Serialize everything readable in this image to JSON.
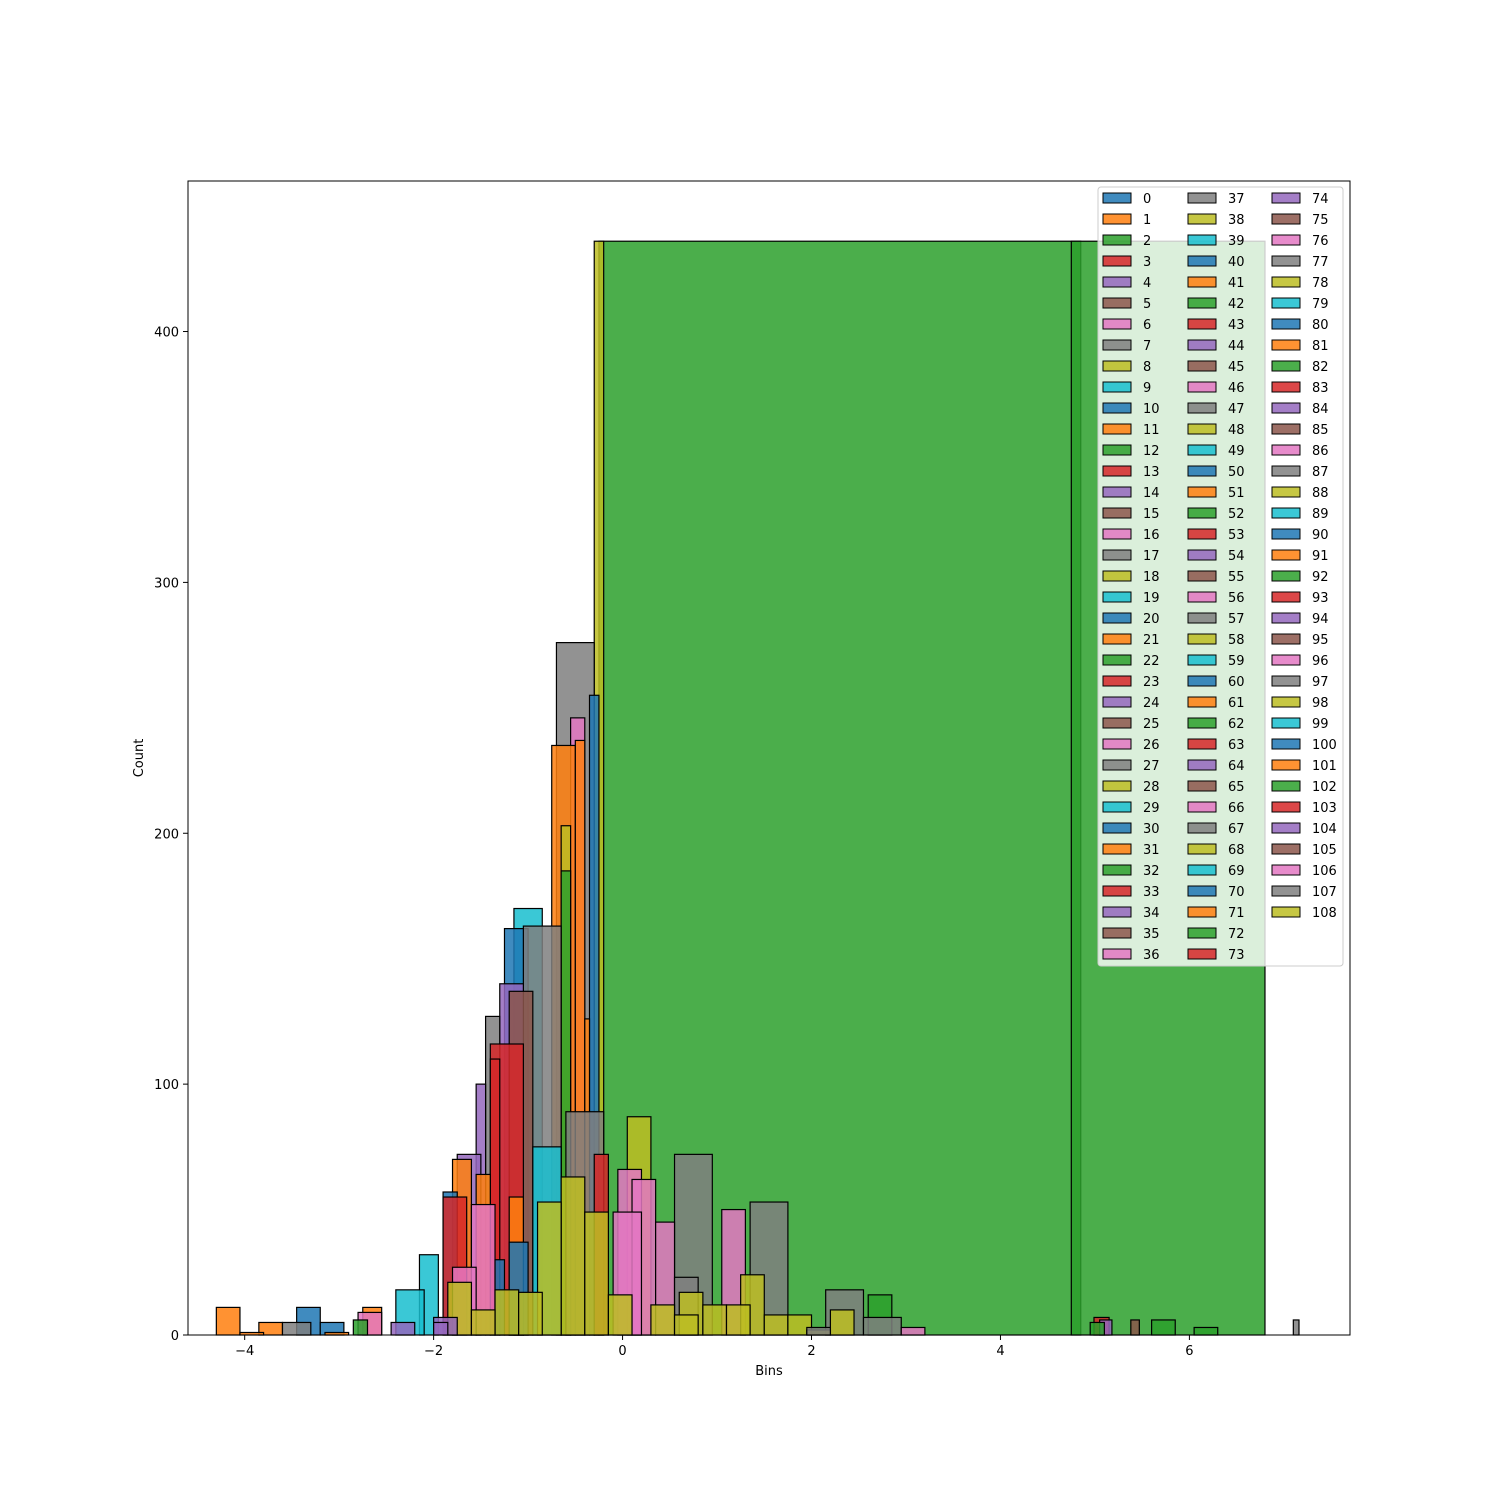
{
  "chart_data": {
    "type": "bar",
    "title": "",
    "xlabel": "Bins",
    "ylabel": "Count",
    "xlim": [
      -4.6,
      7.7
    ],
    "ylim": [
      0,
      460
    ],
    "x_ticks": [
      -4,
      -2,
      0,
      2,
      4,
      6
    ],
    "x_tick_labels": [
      "−4",
      "−2",
      "0",
      "2",
      "4",
      "6"
    ],
    "y_ticks": [
      0,
      100,
      200,
      300,
      400
    ],
    "y_tick_labels": [
      "0",
      "100",
      "200",
      "300",
      "400"
    ],
    "legend_location": "upper right",
    "legend_columns": 3,
    "legend_labels": [
      "0",
      "1",
      "2",
      "3",
      "4",
      "5",
      "6",
      "7",
      "8",
      "9",
      "10",
      "11",
      "12",
      "13",
      "14",
      "15",
      "16",
      "17",
      "18",
      "19",
      "20",
      "21",
      "22",
      "23",
      "24",
      "25",
      "26",
      "27",
      "28",
      "29",
      "30",
      "31",
      "32",
      "33",
      "34",
      "35",
      "36",
      "37",
      "38",
      "39",
      "40",
      "41",
      "42",
      "43",
      "44",
      "45",
      "46",
      "47",
      "48",
      "49",
      "50",
      "51",
      "52",
      "53",
      "54",
      "55",
      "56",
      "57",
      "58",
      "59",
      "60",
      "61",
      "62",
      "63",
      "64",
      "65",
      "66",
      "67",
      "68",
      "69",
      "70",
      "71",
      "72",
      "73",
      "74",
      "75",
      "76",
      "77",
      "78",
      "79",
      "80",
      "81",
      "82",
      "83",
      "84",
      "85",
      "86",
      "87",
      "88",
      "89",
      "90",
      "91",
      "92",
      "93",
      "94",
      "95",
      "96",
      "97",
      "98",
      "99",
      "100",
      "101",
      "102",
      "103",
      "104",
      "105",
      "106",
      "107",
      "108"
    ],
    "palette": [
      "#1f77b4",
      "#ff7f0e",
      "#2ca02c",
      "#d62728",
      "#9467bd",
      "#8c564b",
      "#e377c2",
      "#7f7f7f",
      "#bcbd22",
      "#17becf"
    ],
    "bar_opacity": 0.85,
    "bar_edge_color": "#000000",
    "bars": [
      {
        "series": 2,
        "x0": -0.25,
        "x1": 4.85,
        "y": 436
      },
      {
        "series": 2,
        "x0": 4.75,
        "x1": 6.8,
        "y": 436
      },
      {
        "series": 8,
        "x0": -0.3,
        "x1": -0.2,
        "y": 436
      },
      {
        "series": 7,
        "x0": -0.7,
        "x1": -0.3,
        "y": 276
      },
      {
        "series": 0,
        "x0": -0.35,
        "x1": -0.25,
        "y": 255
      },
      {
        "series": 6,
        "x0": -0.55,
        "x1": -0.4,
        "y": 246
      },
      {
        "series": 1,
        "x0": -0.75,
        "x1": -0.5,
        "y": 235
      },
      {
        "series": 1,
        "x0": -0.5,
        "x1": -0.4,
        "y": 237
      },
      {
        "series": 8,
        "x0": -0.65,
        "x1": -0.55,
        "y": 203
      },
      {
        "series": 2,
        "x0": -0.65,
        "x1": -0.55,
        "y": 185
      },
      {
        "series": 9,
        "x0": -1.15,
        "x1": -0.85,
        "y": 170
      },
      {
        "series": 0,
        "x0": -1.25,
        "x1": -1.0,
        "y": 162
      },
      {
        "series": 7,
        "x0": -1.05,
        "x1": -0.65,
        "y": 163
      },
      {
        "series": 4,
        "x0": -1.3,
        "x1": -1.05,
        "y": 140
      },
      {
        "series": 5,
        "x0": -1.2,
        "x1": -0.95,
        "y": 137
      },
      {
        "series": 7,
        "x0": -1.45,
        "x1": -1.3,
        "y": 127
      },
      {
        "series": 1,
        "x0": -0.4,
        "x1": -0.35,
        "y": 126
      },
      {
        "series": 3,
        "x0": -1.4,
        "x1": -1.05,
        "y": 116
      },
      {
        "series": 3,
        "x0": -1.4,
        "x1": -1.3,
        "y": 110
      },
      {
        "series": 4,
        "x0": -1.55,
        "x1": -1.45,
        "y": 100
      },
      {
        "series": 7,
        "x0": -0.6,
        "x1": -0.2,
        "y": 89
      },
      {
        "series": 8,
        "x0": 0.05,
        "x1": 0.3,
        "y": 87
      },
      {
        "series": 9,
        "x0": -0.95,
        "x1": -0.65,
        "y": 75
      },
      {
        "series": 7,
        "x0": 0.55,
        "x1": 0.95,
        "y": 72
      },
      {
        "series": 3,
        "x0": -0.3,
        "x1": -0.15,
        "y": 72
      },
      {
        "series": 4,
        "x0": -1.75,
        "x1": -1.5,
        "y": 72
      },
      {
        "series": 1,
        "x0": -1.8,
        "x1": -1.6,
        "y": 70
      },
      {
        "series": 6,
        "x0": -0.05,
        "x1": 0.2,
        "y": 66
      },
      {
        "series": 1,
        "x0": -1.55,
        "x1": -1.4,
        "y": 64
      },
      {
        "series": 6,
        "x0": 0.1,
        "x1": 0.35,
        "y": 62
      },
      {
        "series": 8,
        "x0": -0.65,
        "x1": -0.4,
        "y": 63
      },
      {
        "series": 0,
        "x0": -1.9,
        "x1": -1.75,
        "y": 57
      },
      {
        "series": 3,
        "x0": -1.9,
        "x1": -1.65,
        "y": 55
      },
      {
        "series": 8,
        "x0": -0.9,
        "x1": -0.65,
        "y": 53
      },
      {
        "series": 7,
        "x0": 1.35,
        "x1": 1.75,
        "y": 53
      },
      {
        "series": 1,
        "x0": -1.2,
        "x1": -1.05,
        "y": 55
      },
      {
        "series": 6,
        "x0": 1.05,
        "x1": 1.3,
        "y": 50
      },
      {
        "series": 6,
        "x0": -0.1,
        "x1": 0.2,
        "y": 49
      },
      {
        "series": 8,
        "x0": -0.4,
        "x1": -0.15,
        "y": 49
      },
      {
        "series": 6,
        "x0": -1.6,
        "x1": -1.35,
        "y": 52
      },
      {
        "series": 6,
        "x0": 0.35,
        "x1": 0.55,
        "y": 45
      },
      {
        "series": 0,
        "x0": -1.2,
        "x1": -1.0,
        "y": 37
      },
      {
        "series": 9,
        "x0": -2.15,
        "x1": -1.95,
        "y": 32
      },
      {
        "series": 0,
        "x0": -1.35,
        "x1": -1.25,
        "y": 30
      },
      {
        "series": 6,
        "x0": -1.8,
        "x1": -1.55,
        "y": 27
      },
      {
        "series": 8,
        "x0": 1.25,
        "x1": 1.5,
        "y": 24
      },
      {
        "series": 8,
        "x0": -1.85,
        "x1": -1.6,
        "y": 21
      },
      {
        "series": 9,
        "x0": -2.4,
        "x1": -2.1,
        "y": 18
      },
      {
        "series": 7,
        "x0": 0.55,
        "x1": 0.8,
        "y": 23
      },
      {
        "series": 8,
        "x0": -1.35,
        "x1": -1.1,
        "y": 18
      },
      {
        "series": 8,
        "x0": -1.1,
        "x1": -0.85,
        "y": 17
      },
      {
        "series": 8,
        "x0": -0.15,
        "x1": 0.1,
        "y": 16
      },
      {
        "series": 8,
        "x0": 0.6,
        "x1": 0.85,
        "y": 17
      },
      {
        "series": 7,
        "x0": 2.15,
        "x1": 2.55,
        "y": 18
      },
      {
        "series": 2,
        "x0": 2.6,
        "x1": 2.85,
        "y": 16
      },
      {
        "series": 8,
        "x0": 0.3,
        "x1": 0.55,
        "y": 12
      },
      {
        "series": 8,
        "x0": 0.85,
        "x1": 1.1,
        "y": 12
      },
      {
        "series": 8,
        "x0": 1.1,
        "x1": 1.35,
        "y": 12
      },
      {
        "series": 0,
        "x0": -3.45,
        "x1": -3.2,
        "y": 11
      },
      {
        "series": 1,
        "x0": -4.3,
        "x1": -4.05,
        "y": 11
      },
      {
        "series": 1,
        "x0": -2.75,
        "x1": -2.55,
        "y": 11
      },
      {
        "series": 8,
        "x0": -1.6,
        "x1": -1.35,
        "y": 10
      },
      {
        "series": 8,
        "x0": 2.2,
        "x1": 2.45,
        "y": 10
      },
      {
        "series": 7,
        "x0": 2.55,
        "x1": 2.95,
        "y": 7
      },
      {
        "series": 8,
        "x0": 1.5,
        "x1": 1.75,
        "y": 8
      },
      {
        "series": 8,
        "x0": 1.75,
        "x1": 2.0,
        "y": 8
      },
      {
        "series": 8,
        "x0": 0.55,
        "x1": 0.8,
        "y": 8
      },
      {
        "series": 6,
        "x0": -2.8,
        "x1": -2.55,
        "y": 9
      },
      {
        "series": 4,
        "x0": -2.0,
        "x1": -1.75,
        "y": 7
      },
      {
        "series": 3,
        "x0": 4.99,
        "x1": 5.15,
        "y": 7
      },
      {
        "series": 4,
        "x0": 5.05,
        "x1": 5.18,
        "y": 6
      },
      {
        "series": 5,
        "x0": 5.38,
        "x1": 5.47,
        "y": 6
      },
      {
        "series": 7,
        "x0": 7.1,
        "x1": 7.16,
        "y": 6
      },
      {
        "series": 2,
        "x0": 5.6,
        "x1": 5.85,
        "y": 6
      },
      {
        "series": 2,
        "x0": 4.95,
        "x1": 5.1,
        "y": 5
      },
      {
        "series": 2,
        "x0": 6.05,
        "x1": 6.3,
        "y": 3
      },
      {
        "series": 1,
        "x0": -3.85,
        "x1": -3.6,
        "y": 5
      },
      {
        "series": 7,
        "x0": -3.6,
        "x1": -3.3,
        "y": 5
      },
      {
        "series": 0,
        "x0": -3.2,
        "x1": -2.95,
        "y": 5
      },
      {
        "series": 4,
        "x0": -2.45,
        "x1": -2.2,
        "y": 5
      },
      {
        "series": 4,
        "x0": -2.0,
        "x1": -1.85,
        "y": 5
      },
      {
        "series": 2,
        "x0": -2.85,
        "x1": -2.7,
        "y": 6
      },
      {
        "series": 6,
        "x0": 2.95,
        "x1": 3.2,
        "y": 3
      },
      {
        "series": 1,
        "x0": -4.05,
        "x1": -3.8,
        "y": 1
      },
      {
        "series": 1,
        "x0": -3.15,
        "x1": -2.9,
        "y": 1
      },
      {
        "series": 8,
        "x0": 1.95,
        "x1": 2.2,
        "y": 2
      },
      {
        "series": 7,
        "x0": 1.95,
        "x1": 2.2,
        "y": 3
      }
    ]
  }
}
